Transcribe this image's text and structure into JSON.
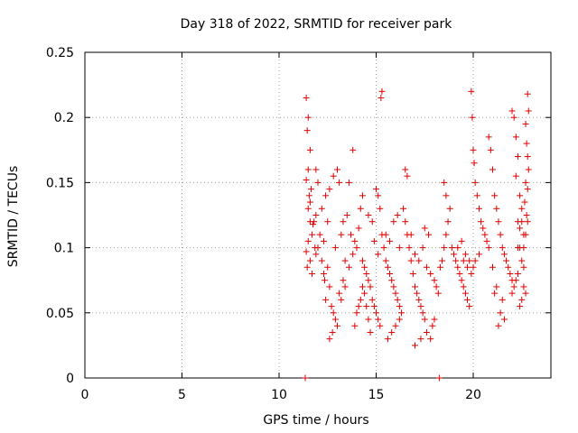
{
  "chart_data": {
    "type": "scatter",
    "title": "Day 318 of 2022, SRMTID for receiver park",
    "xlabel": "GPS time / hours",
    "ylabel": "SRMTID / TECUs",
    "xlim": [
      0,
      24
    ],
    "ylim": [
      0,
      0.25
    ],
    "xticks": [
      0,
      5,
      10,
      15,
      20
    ],
    "xtick_labels": [
      "0",
      "5",
      "10",
      "15",
      "20"
    ],
    "yticks": [
      0,
      0.05,
      0.1,
      0.15,
      0.2,
      0.25
    ],
    "ytick_labels": [
      "0",
      "0.05",
      "0.1",
      "0.15",
      "0.2",
      "0.25"
    ],
    "grid": true,
    "marker": "+",
    "color": "#e00000",
    "series": [
      {
        "name": "SRMTID",
        "points": [
          [
            11.4,
            0.215
          ],
          [
            11.5,
            0.2
          ],
          [
            11.45,
            0.19
          ],
          [
            11.6,
            0.175
          ],
          [
            11.5,
            0.16
          ],
          [
            11.4,
            0.152
          ],
          [
            11.55,
            0.14
          ],
          [
            11.6,
            0.12
          ],
          [
            11.7,
            0.11
          ],
          [
            11.5,
            0.105
          ],
          [
            11.4,
            0.097
          ],
          [
            11.6,
            0.09
          ],
          [
            11.45,
            0.085
          ],
          [
            11.7,
            0.08
          ],
          [
            11.8,
            0.12
          ],
          [
            11.9,
            0.125
          ],
          [
            11.75,
            0.118
          ],
          [
            11.5,
            0.13
          ],
          [
            11.6,
            0.135
          ],
          [
            11.65,
            0.145
          ],
          [
            11.85,
            0.1
          ],
          [
            11.9,
            0.095
          ],
          [
            12.0,
            0.1
          ],
          [
            12.1,
            0.11
          ],
          [
            12.2,
            0.09
          ],
          [
            12.3,
            0.08
          ],
          [
            12.35,
            0.075
          ],
          [
            12.4,
            0.06
          ],
          [
            12.5,
            0.085
          ],
          [
            12.6,
            0.07
          ],
          [
            12.7,
            0.055
          ],
          [
            12.8,
            0.05
          ],
          [
            12.9,
            0.045
          ],
          [
            13.0,
            0.04
          ],
          [
            12.6,
            0.03
          ],
          [
            12.75,
            0.035
          ],
          [
            13.1,
            0.065
          ],
          [
            13.2,
            0.06
          ],
          [
            13.3,
            0.075
          ],
          [
            13.4,
            0.09
          ],
          [
            12.2,
            0.13
          ],
          [
            12.4,
            0.14
          ],
          [
            12.6,
            0.145
          ],
          [
            12.8,
            0.155
          ],
          [
            13.0,
            0.16
          ],
          [
            13.1,
            0.15
          ],
          [
            13.3,
            0.12
          ],
          [
            13.5,
            0.125
          ],
          [
            13.7,
            0.11
          ],
          [
            13.9,
            0.105
          ],
          [
            14.1,
            0.115
          ],
          [
            14.2,
            0.13
          ],
          [
            14.0,
            0.1
          ],
          [
            13.8,
            0.095
          ],
          [
            13.6,
            0.085
          ],
          [
            13.4,
            0.07
          ],
          [
            13.2,
            0.11
          ],
          [
            12.9,
            0.1
          ],
          [
            12.5,
            0.12
          ],
          [
            12.3,
            0.105
          ],
          [
            13.8,
            0.175
          ],
          [
            14.3,
            0.09
          ],
          [
            14.4,
            0.085
          ],
          [
            14.5,
            0.08
          ],
          [
            14.6,
            0.075
          ],
          [
            14.7,
            0.07
          ],
          [
            14.8,
            0.06
          ],
          [
            14.9,
            0.055
          ],
          [
            15.0,
            0.05
          ],
          [
            15.1,
            0.045
          ],
          [
            15.2,
            0.04
          ],
          [
            14.7,
            0.035
          ],
          [
            14.6,
            0.045
          ],
          [
            14.5,
            0.055
          ],
          [
            14.4,
            0.065
          ],
          [
            14.3,
            0.07
          ],
          [
            14.2,
            0.06
          ],
          [
            14.1,
            0.055
          ],
          [
            14.0,
            0.05
          ],
          [
            13.9,
            0.04
          ],
          [
            15.3,
            0.22
          ],
          [
            15.25,
            0.215
          ],
          [
            15.0,
            0.145
          ],
          [
            15.1,
            0.14
          ],
          [
            15.2,
            0.13
          ],
          [
            15.3,
            0.11
          ],
          [
            15.4,
            0.1
          ],
          [
            15.5,
            0.09
          ],
          [
            15.6,
            0.085
          ],
          [
            15.7,
            0.08
          ],
          [
            15.8,
            0.075
          ],
          [
            15.9,
            0.07
          ],
          [
            16.0,
            0.065
          ],
          [
            16.1,
            0.06
          ],
          [
            16.2,
            0.055
          ],
          [
            16.3,
            0.05
          ],
          [
            15.6,
            0.03
          ],
          [
            15.8,
            0.035
          ],
          [
            16.0,
            0.04
          ],
          [
            16.2,
            0.045
          ],
          [
            16.5,
            0.16
          ],
          [
            16.6,
            0.155
          ],
          [
            16.4,
            0.13
          ],
          [
            16.5,
            0.12
          ],
          [
            16.6,
            0.11
          ],
          [
            16.7,
            0.1
          ],
          [
            16.8,
            0.09
          ],
          [
            16.9,
            0.08
          ],
          [
            17.0,
            0.07
          ],
          [
            17.1,
            0.065
          ],
          [
            17.2,
            0.06
          ],
          [
            17.3,
            0.055
          ],
          [
            17.4,
            0.05
          ],
          [
            17.5,
            0.045
          ],
          [
            17.0,
            0.025
          ],
          [
            17.3,
            0.03
          ],
          [
            17.6,
            0.035
          ],
          [
            17.8,
            0.03
          ],
          [
            17.9,
            0.04
          ],
          [
            18.0,
            0.045
          ],
          [
            17.0,
            0.095
          ],
          [
            17.2,
            0.09
          ],
          [
            17.4,
            0.1
          ],
          [
            17.6,
            0.085
          ],
          [
            17.8,
            0.08
          ],
          [
            18.0,
            0.075
          ],
          [
            18.1,
            0.07
          ],
          [
            18.2,
            0.065
          ],
          [
            17.5,
            0.115
          ],
          [
            17.7,
            0.11
          ],
          [
            16.8,
            0.11
          ],
          [
            16.2,
            0.1
          ],
          [
            15.9,
            0.12
          ],
          [
            16.1,
            0.125
          ],
          [
            15.5,
            0.11
          ],
          [
            15.7,
            0.105
          ],
          [
            14.8,
            0.12
          ],
          [
            14.6,
            0.125
          ],
          [
            14.9,
            0.105
          ],
          [
            15.1,
            0.095
          ],
          [
            18.3,
            0.085
          ],
          [
            18.4,
            0.09
          ],
          [
            18.5,
            0.1
          ],
          [
            18.6,
            0.11
          ],
          [
            18.7,
            0.12
          ],
          [
            18.5,
            0.15
          ],
          [
            18.6,
            0.14
          ],
          [
            18.8,
            0.13
          ],
          [
            18.9,
            0.1
          ],
          [
            19.0,
            0.095
          ],
          [
            19.1,
            0.09
          ],
          [
            19.2,
            0.085
          ],
          [
            19.3,
            0.08
          ],
          [
            19.4,
            0.075
          ],
          [
            19.5,
            0.07
          ],
          [
            19.6,
            0.065
          ],
          [
            19.7,
            0.06
          ],
          [
            19.8,
            0.055
          ],
          [
            19.2,
            0.1
          ],
          [
            19.4,
            0.105
          ],
          [
            19.9,
            0.22
          ],
          [
            19.95,
            0.2
          ],
          [
            20.0,
            0.175
          ],
          [
            20.05,
            0.165
          ],
          [
            20.1,
            0.15
          ],
          [
            20.2,
            0.14
          ],
          [
            20.3,
            0.13
          ],
          [
            20.4,
            0.12
          ],
          [
            20.5,
            0.115
          ],
          [
            20.6,
            0.11
          ],
          [
            20.7,
            0.105
          ],
          [
            20.8,
            0.1
          ],
          [
            20.3,
            0.095
          ],
          [
            20.1,
            0.09
          ],
          [
            20.0,
            0.085
          ],
          [
            19.9,
            0.08
          ],
          [
            19.8,
            0.09
          ],
          [
            19.7,
            0.085
          ],
          [
            19.6,
            0.095
          ],
          [
            19.5,
            0.09
          ],
          [
            20.8,
            0.185
          ],
          [
            20.9,
            0.175
          ],
          [
            21.0,
            0.16
          ],
          [
            21.1,
            0.14
          ],
          [
            21.2,
            0.13
          ],
          [
            21.3,
            0.12
          ],
          [
            21.4,
            0.11
          ],
          [
            21.5,
            0.1
          ],
          [
            21.6,
            0.095
          ],
          [
            21.7,
            0.09
          ],
          [
            21.8,
            0.085
          ],
          [
            21.9,
            0.08
          ],
          [
            22.0,
            0.075
          ],
          [
            21.5,
            0.06
          ],
          [
            21.4,
            0.05
          ],
          [
            21.3,
            0.04
          ],
          [
            21.6,
            0.045
          ],
          [
            21.2,
            0.07
          ],
          [
            21.1,
            0.065
          ],
          [
            21.0,
            0.085
          ],
          [
            22.0,
            0.205
          ],
          [
            22.1,
            0.2
          ],
          [
            22.2,
            0.185
          ],
          [
            22.3,
            0.17
          ],
          [
            22.2,
            0.155
          ],
          [
            22.4,
            0.14
          ],
          [
            22.3,
            0.12
          ],
          [
            22.5,
            0.13
          ],
          [
            22.6,
            0.11
          ],
          [
            22.4,
            0.1
          ],
          [
            22.5,
            0.09
          ],
          [
            22.6,
            0.085
          ],
          [
            22.3,
            0.08
          ],
          [
            22.2,
            0.075
          ],
          [
            22.1,
            0.07
          ],
          [
            22.0,
            0.065
          ],
          [
            22.4,
            0.055
          ],
          [
            22.5,
            0.06
          ],
          [
            22.6,
            0.07
          ],
          [
            22.7,
            0.065
          ],
          [
            22.8,
            0.218
          ],
          [
            22.85,
            0.205
          ],
          [
            22.7,
            0.195
          ],
          [
            22.75,
            0.18
          ],
          [
            22.8,
            0.17
          ],
          [
            22.85,
            0.16
          ],
          [
            22.7,
            0.15
          ],
          [
            22.8,
            0.145
          ],
          [
            22.65,
            0.135
          ],
          [
            22.75,
            0.125
          ],
          [
            22.8,
            0.12
          ],
          [
            22.7,
            0.11
          ],
          [
            22.6,
            0.1
          ],
          [
            22.5,
            0.12
          ],
          [
            22.4,
            0.115
          ],
          [
            22.3,
            0.1
          ],
          [
            12.0,
            0.15
          ],
          [
            11.9,
            0.16
          ],
          [
            13.6,
            0.15
          ],
          [
            14.3,
            0.14
          ],
          [
            11.35,
            0.0
          ],
          [
            18.25,
            0.0
          ]
        ]
      }
    ]
  }
}
